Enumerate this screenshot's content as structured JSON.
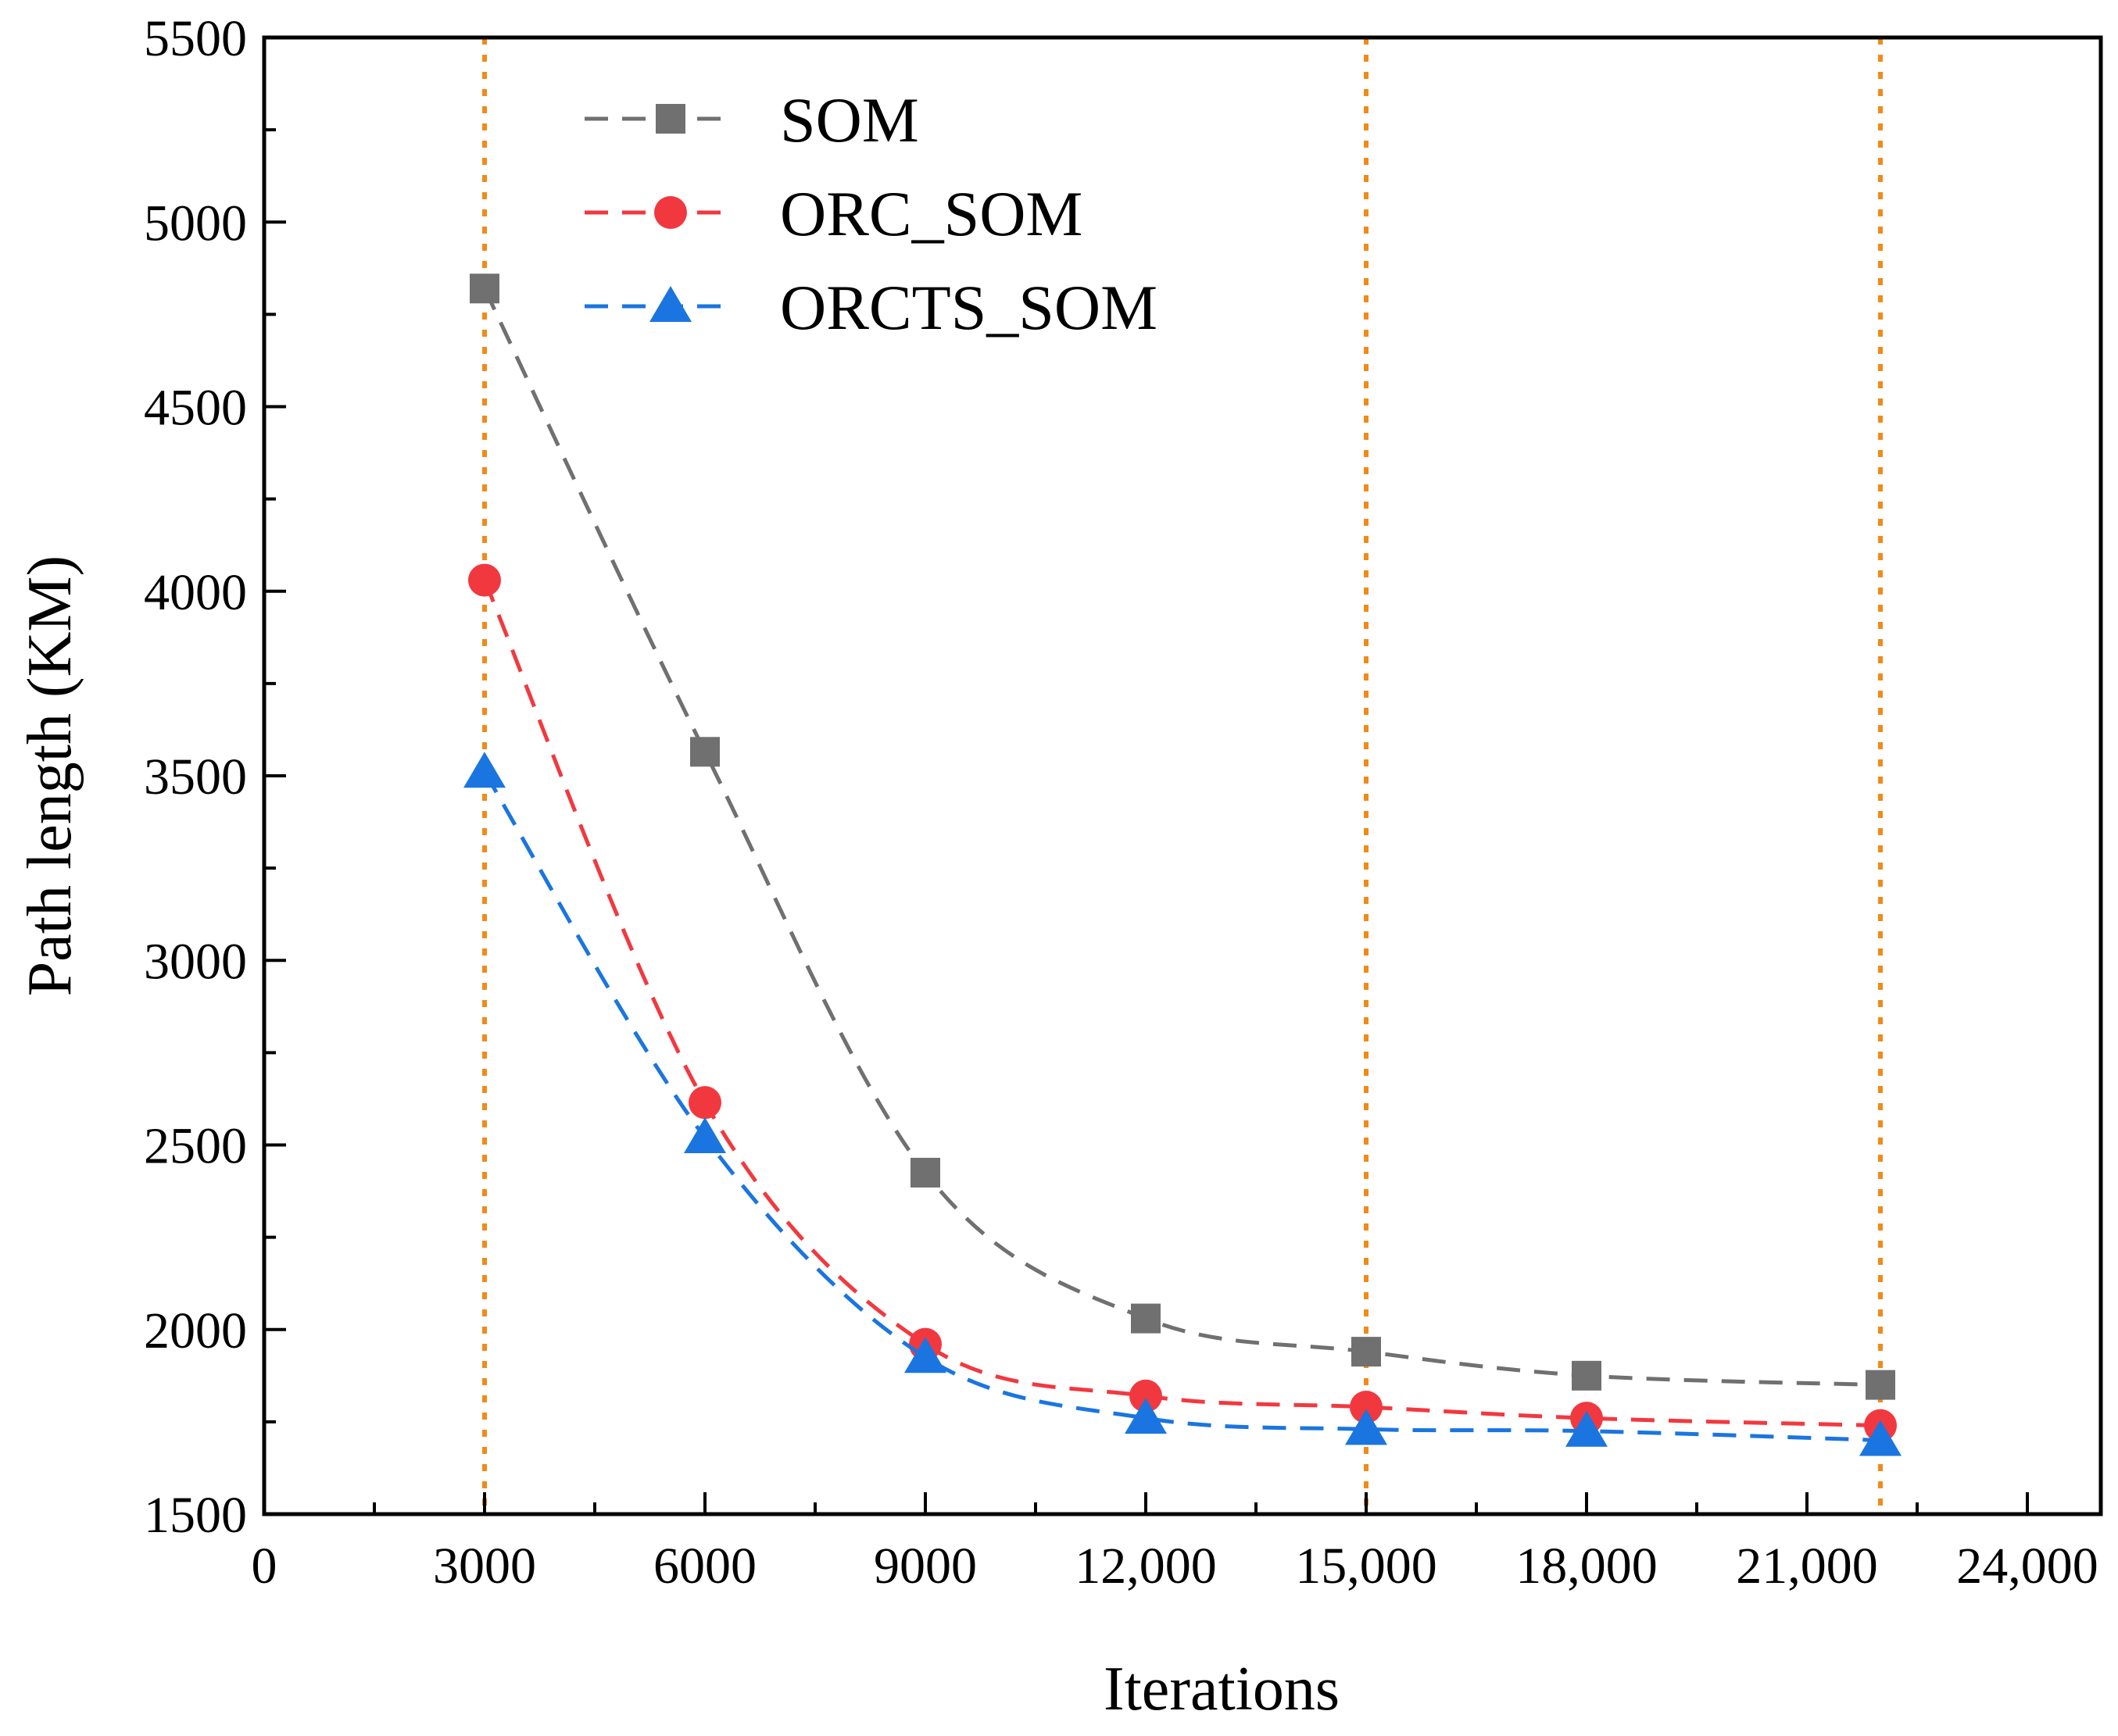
{
  "chart_data": {
    "type": "line",
    "title": "",
    "xlabel": "Iterations",
    "ylabel": "Path length (KM)",
    "xlim": [
      0,
      25000
    ],
    "ylim": [
      1500,
      5500
    ],
    "x_ticks": [
      0,
      3000,
      6000,
      9000,
      12000,
      15000,
      18000,
      21000,
      24000
    ],
    "x_tick_labels": [
      "0",
      "3000",
      "6000",
      "9000",
      "12,000",
      "15,000",
      "18,000",
      "21,000",
      "24,000"
    ],
    "y_ticks": [
      1500,
      2000,
      2500,
      3000,
      3500,
      4000,
      4500,
      5000,
      5500
    ],
    "y_tick_labels": [
      "1500",
      "2000",
      "2500",
      "3000",
      "3500",
      "4000",
      "4500",
      "5000",
      "5500"
    ],
    "x": [
      3000,
      6000,
      9000,
      12000,
      15000,
      18000,
      22000
    ],
    "series": [
      {
        "name": "SOM",
        "color": "#707070",
        "marker": "square",
        "values": [
          4820,
          3565,
          2425,
          2030,
          1940,
          1875,
          1850
        ]
      },
      {
        "name": "ORC_SOM",
        "color": "#f2383f",
        "marker": "circle",
        "values": [
          4030,
          2615,
          1960,
          1820,
          1790,
          1760,
          1740
        ]
      },
      {
        "name": "ORCTS_SOM",
        "color": "#1a75e0",
        "marker": "triangle",
        "values": [
          3510,
          2520,
          1925,
          1760,
          1730,
          1725,
          1700
        ]
      }
    ],
    "reference_lines": {
      "orientation": "vertical",
      "color": "#f28a18",
      "style": "dotted",
      "x": [
        3000,
        15000,
        22000
      ]
    },
    "legend": {
      "placement": "top-center",
      "entries": [
        "SOM",
        "ORC_SOM",
        "ORCTS_SOM"
      ]
    },
    "grid": false
  }
}
